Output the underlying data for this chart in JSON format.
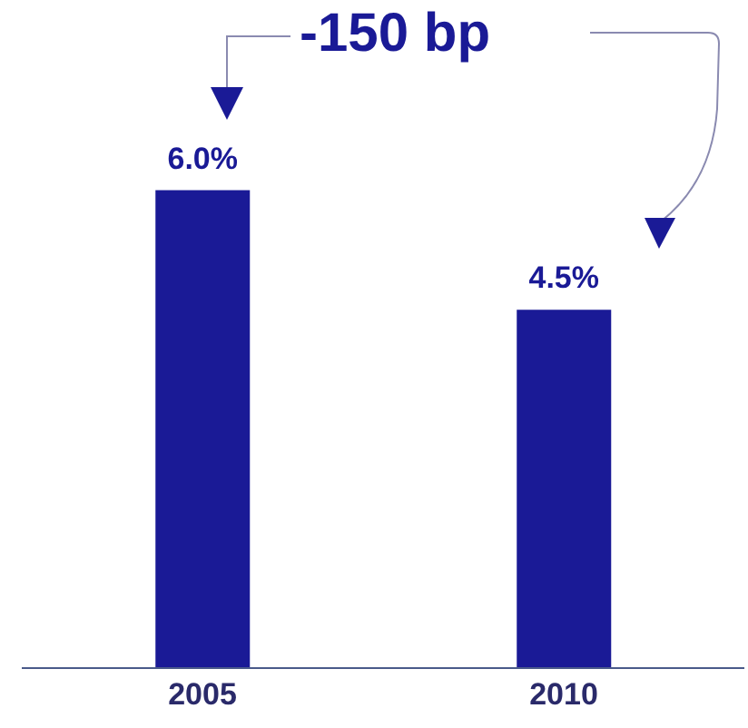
{
  "chart_data": {
    "type": "bar",
    "categories": [
      "2005",
      "2010"
    ],
    "values": [
      6.0,
      4.5
    ],
    "color": "#1a1a96",
    "value_labels": [
      "6.0%",
      "4.5%"
    ],
    "annotations": [
      "-150 bp"
    ],
    "tick_labels": "x",
    "grid": false,
    "legend": false
  }
}
